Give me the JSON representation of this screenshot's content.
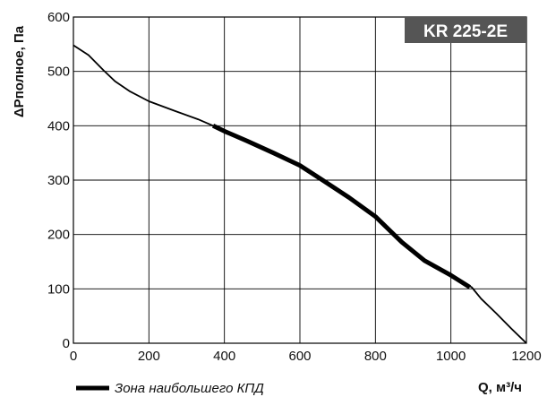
{
  "chart_data": {
    "type": "line",
    "title": "KR 225-2E",
    "xlabel": "Q, м³/ч",
    "ylabel": "ΔPполное, Па",
    "xlim": [
      0,
      1200
    ],
    "ylim": [
      0,
      600
    ],
    "x_ticks": [
      "0",
      "200",
      "400",
      "600",
      "800",
      "1000",
      "1200"
    ],
    "y_ticks": [
      "0",
      "100",
      "200",
      "300",
      "400",
      "500",
      "600"
    ],
    "grid": true,
    "legend": "bottom-left",
    "series": [
      {
        "name": "",
        "color": "#000000",
        "x": [
          0,
          40,
          80,
          110,
          150,
          200,
          270,
          330,
          370,
          400,
          460,
          530,
          600,
          660,
          730,
          800,
          870,
          930,
          1000,
          1055,
          1080,
          1120,
          1160,
          1200
        ],
        "y": [
          548,
          530,
          502,
          482,
          463,
          445,
          427,
          412,
          400,
          390,
          372,
          350,
          327,
          300,
          268,
          233,
          186,
          152,
          125,
          103,
          82,
          55,
          27,
          0
        ]
      },
      {
        "name": "Зона наибольшего КПД",
        "color": "#000000",
        "x": [
          370,
          400,
          460,
          530,
          600,
          660,
          730,
          800,
          870,
          930,
          1000,
          1050
        ],
        "y": [
          400,
          390,
          372,
          350,
          327,
          300,
          268,
          233,
          186,
          152,
          125,
          103
        ]
      }
    ]
  }
}
